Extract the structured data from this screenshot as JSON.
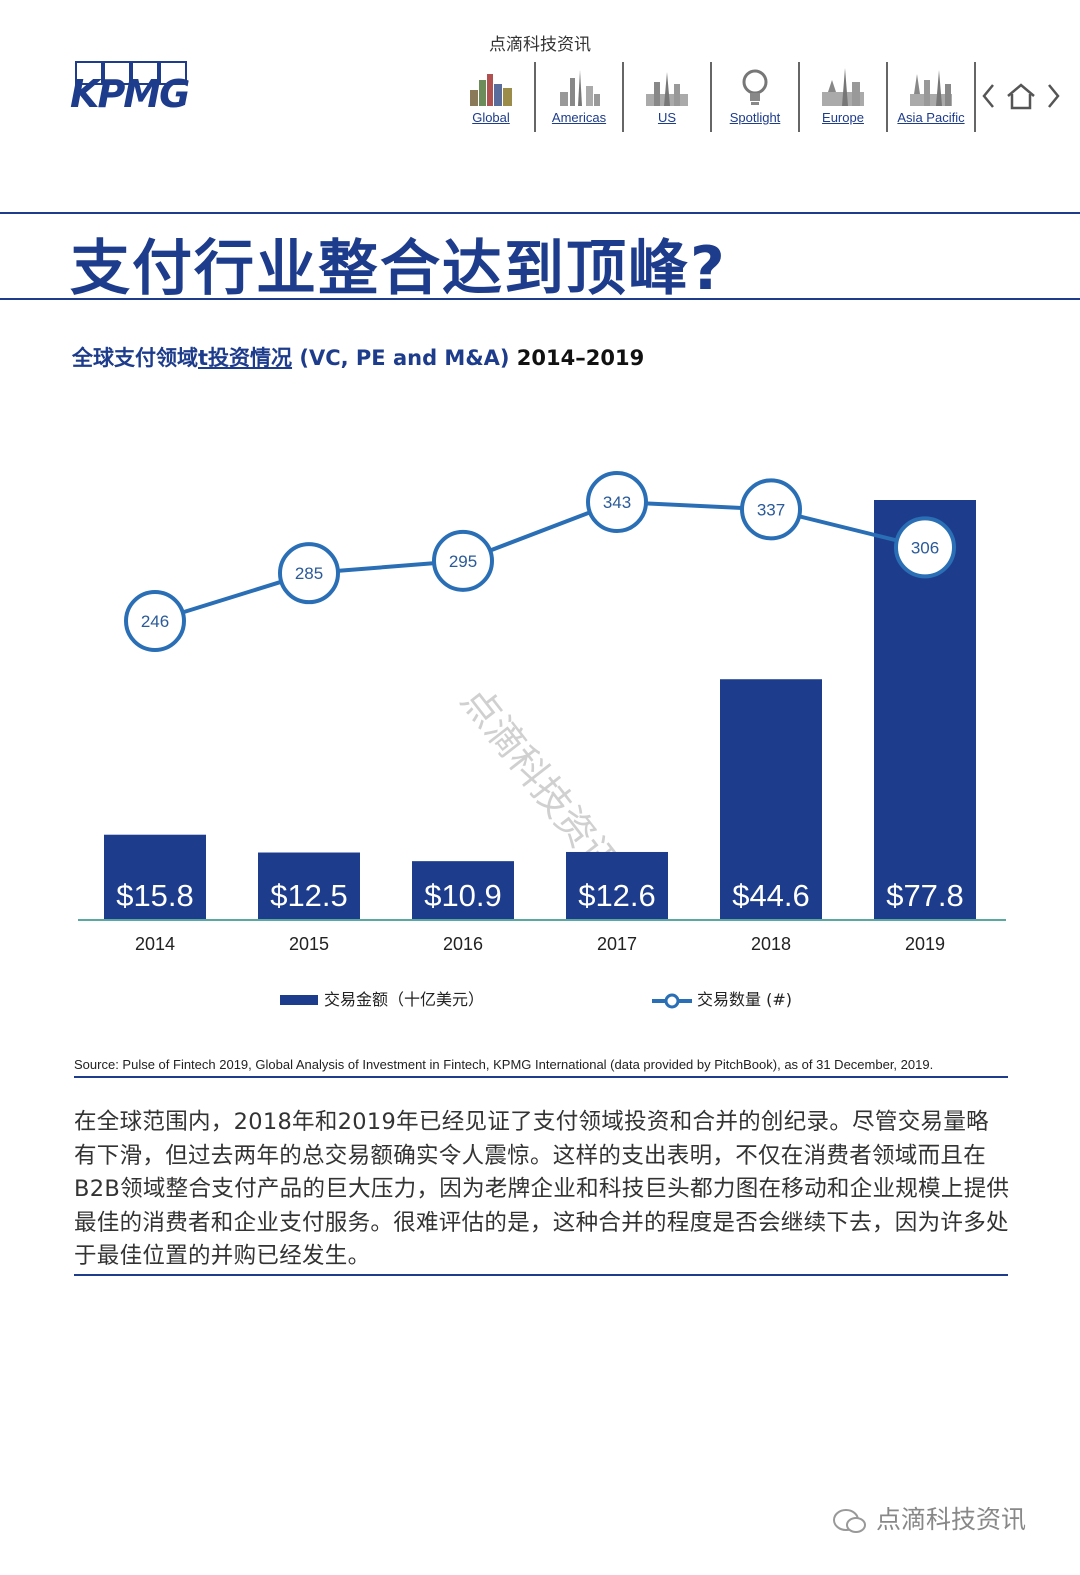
{
  "header": {
    "watermark": "点滴科技资讯",
    "logo_text": "KPMG",
    "nav": [
      {
        "label": "Global",
        "icon": "global-skyline-icon"
      },
      {
        "label": "Americas",
        "icon": "americas-skyline-icon"
      },
      {
        "label": "US",
        "icon": "us-skyline-icon"
      },
      {
        "label": "Spotlight",
        "icon": "spotlight-bulb-icon"
      },
      {
        "label": "Europe",
        "icon": "europe-skyline-icon"
      },
      {
        "label": "Asia Pacific",
        "icon": "asia-pacific-skyline-icon"
      }
    ],
    "controls": [
      "prev-icon",
      "home-icon",
      "next-icon"
    ]
  },
  "page_title": "支付行业整合达到顶峰?",
  "chart_subtitle": {
    "prefix": "全球支付领域",
    "linked": "t投资情况",
    "suffix": " (VC, PE and M&A) ",
    "years": "2014–2019"
  },
  "chart_data": {
    "type": "bar",
    "categories": [
      "2014",
      "2015",
      "2016",
      "2017",
      "2018",
      "2019"
    ],
    "series": [
      {
        "name": "交易金额（十亿美元）",
        "type": "bar",
        "values": [
          15.8,
          12.5,
          10.9,
          12.6,
          44.6,
          77.8
        ],
        "labels": [
          "$15.8",
          "$12.5",
          "$10.9",
          "$12.6",
          "$44.6",
          "$77.8"
        ],
        "color": "#1e3c8c"
      },
      {
        "name": "交易数量 (#)",
        "type": "line",
        "values": [
          246,
          285,
          295,
          343,
          337,
          306
        ],
        "color": "#2a6fb5"
      }
    ],
    "legend_position": "bottom",
    "grid": false,
    "watermark": "点滴科技资讯"
  },
  "legend": {
    "bar_label": "交易金额（十亿美元）",
    "line_label": "交易数量 (#)"
  },
  "source": "Source: Pulse of Fintech 2019, Global Analysis of Investment in Fintech, KPMG International (data provided by PitchBook), as of 31 December, 2019.",
  "body_text": "在全球范围内，2018年和2019年已经见证了支付领域投资和合并的创纪录。尽管交易量略有下滑，但过去两年的总交易额确实令人震惊。这样的支出表明，不仅在消费者领域而且在B2B领域整合支付产品的巨大压力，因为老牌企业和科技巨头都力图在移动和企业规模上提供最佳的消费者和企业支付服务。很难评估的是，这种合并的程度是否会继续下去，因为许多处于最佳位置的并购已经发生。",
  "footer_brand": "点滴科技资讯",
  "colors": {
    "brand": "#1e3c8c",
    "line": "#2a6fb5",
    "axis": "#5aa8a0"
  }
}
